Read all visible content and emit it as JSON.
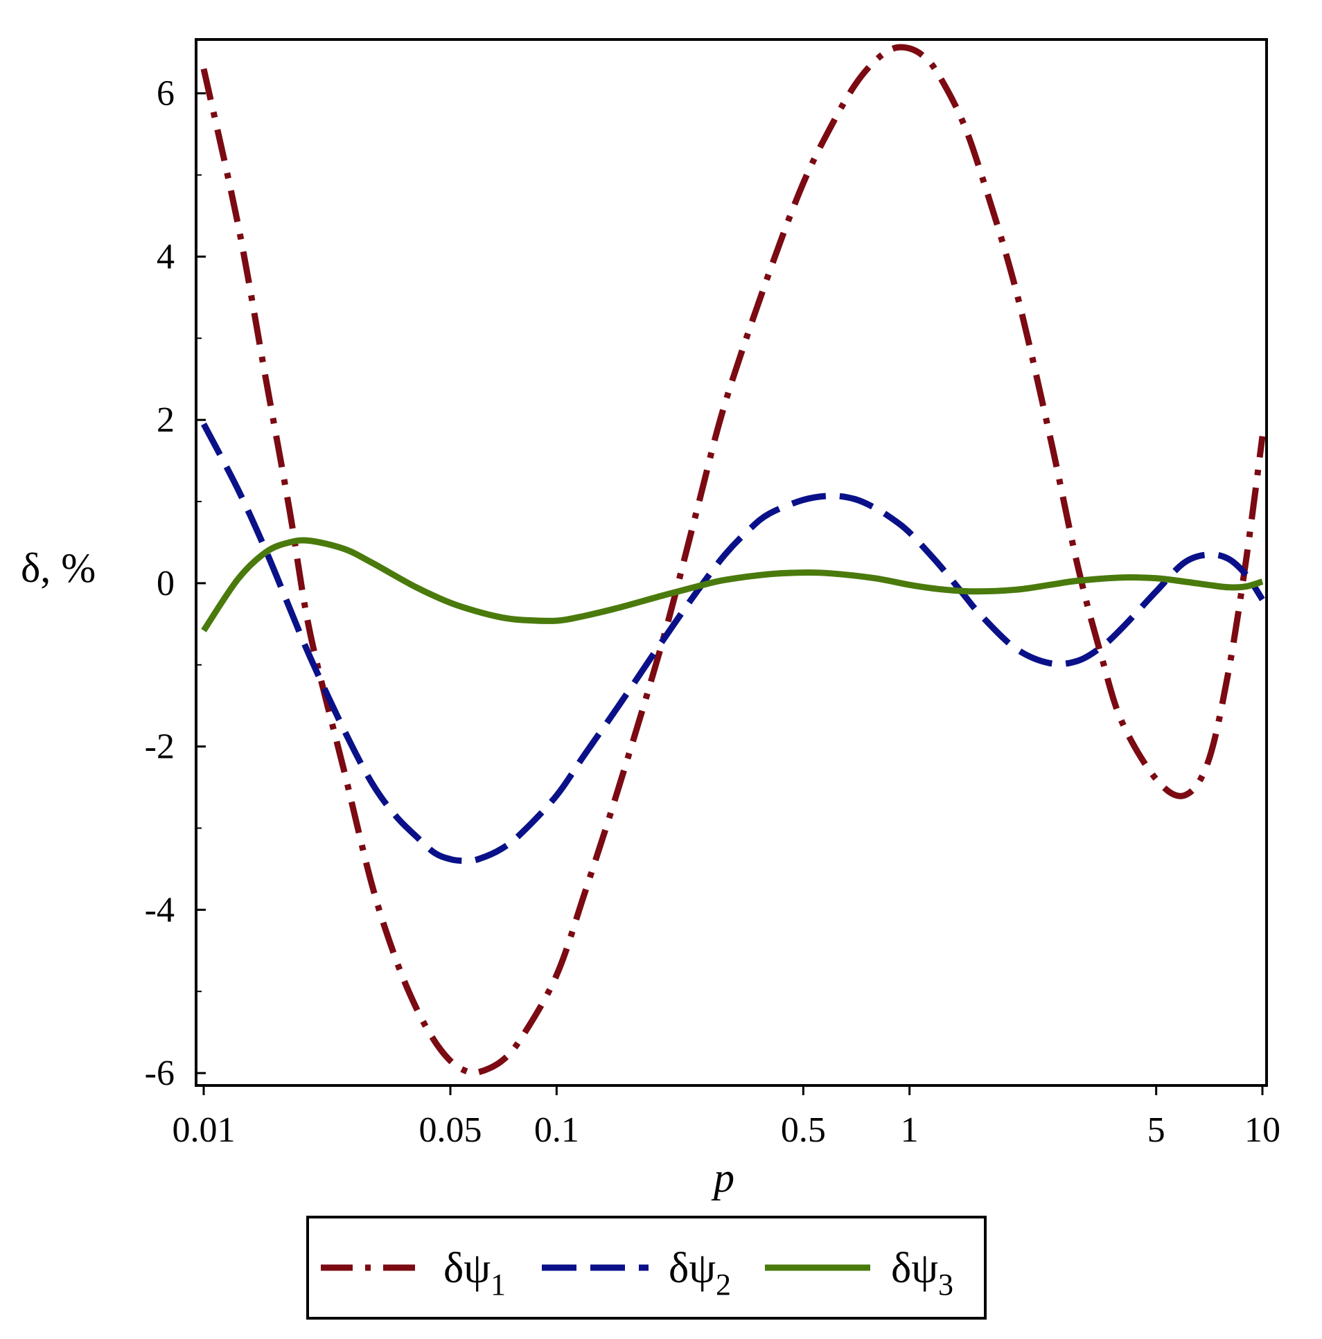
{
  "chart_data": {
    "type": "line",
    "x_scale": "log",
    "xlabel": "p",
    "ylabel": "δ, %",
    "xlim": [
      0.01,
      10
    ],
    "ylim": [
      -6.05,
      6.6
    ],
    "x_ticks": [
      {
        "value": 0.01,
        "label": "0.01"
      },
      {
        "value": 0.05,
        "label": "0.05"
      },
      {
        "value": 0.1,
        "label": "0.1"
      },
      {
        "value": 0.5,
        "label": "0.5"
      },
      {
        "value": 1,
        "label": "1"
      },
      {
        "value": 5,
        "label": "5"
      },
      {
        "value": 10,
        "label": "10"
      }
    ],
    "y_ticks": [
      {
        "value": 6,
        "label": "6"
      },
      {
        "value": 4,
        "label": "4"
      },
      {
        "value": 2,
        "label": "2"
      },
      {
        "value": 0,
        "label": "0"
      },
      {
        "value": -2,
        "label": "-2"
      },
      {
        "value": -4,
        "label": "-4"
      },
      {
        "value": -6,
        "label": "-6"
      }
    ],
    "grid": false,
    "legend_position": "bottom",
    "series": [
      {
        "name": "δψ",
        "subscript": "1",
        "color": "#7B0A12",
        "style": "dash-dot",
        "x": [
          0.01,
          0.0125,
          0.015,
          0.0175,
          0.02,
          0.025,
          0.03,
          0.035,
          0.04,
          0.045,
          0.05,
          0.055,
          0.06,
          0.07,
          0.08,
          0.1,
          0.12,
          0.15,
          0.2,
          0.25,
          0.3,
          0.4,
          0.5,
          0.6,
          0.7,
          0.8,
          0.9,
          1.0,
          1.1,
          1.2,
          1.4,
          1.6,
          2.0,
          2.5,
          3.0,
          3.5,
          4.0,
          5.0,
          6.0,
          7.0,
          8.0,
          9.0,
          10.0
        ],
        "y": [
          6.3,
          4.4,
          2.5,
          0.9,
          -0.6,
          -2.3,
          -3.7,
          -4.6,
          -5.2,
          -5.6,
          -5.85,
          -5.97,
          -5.99,
          -5.85,
          -5.55,
          -4.8,
          -3.8,
          -2.5,
          -0.7,
          0.9,
          2.2,
          3.8,
          4.9,
          5.6,
          6.1,
          6.4,
          6.55,
          6.55,
          6.45,
          6.25,
          5.7,
          5.0,
          3.6,
          1.8,
          0.2,
          -0.9,
          -1.7,
          -2.4,
          -2.6,
          -2.2,
          -1.1,
          0.3,
          1.8
        ]
      },
      {
        "name": "δψ",
        "subscript": "2",
        "color": "#0A1188",
        "style": "dash",
        "x": [
          0.01,
          0.0125,
          0.015,
          0.0175,
          0.02,
          0.025,
          0.03,
          0.035,
          0.04,
          0.045,
          0.05,
          0.055,
          0.06,
          0.07,
          0.08,
          0.1,
          0.12,
          0.15,
          0.2,
          0.25,
          0.3,
          0.35,
          0.4,
          0.5,
          0.6,
          0.7,
          0.8,
          0.9,
          1.0,
          1.2,
          1.4,
          1.6,
          2.0,
          2.5,
          3.0,
          3.5,
          4.0,
          5.0,
          6.0,
          7.0,
          8.0,
          9.0,
          10.0
        ],
        "y": [
          1.95,
          1.15,
          0.4,
          -0.3,
          -0.9,
          -1.8,
          -2.45,
          -2.85,
          -3.1,
          -3.3,
          -3.38,
          -3.4,
          -3.38,
          -3.25,
          -3.05,
          -2.6,
          -2.1,
          -1.5,
          -0.7,
          -0.1,
          0.35,
          0.65,
          0.85,
          1.02,
          1.07,
          1.03,
          0.92,
          0.78,
          0.62,
          0.25,
          -0.1,
          -0.4,
          -0.8,
          -0.98,
          -0.95,
          -0.78,
          -0.55,
          -0.1,
          0.25,
          0.35,
          0.3,
          0.1,
          -0.2
        ]
      },
      {
        "name": "δψ",
        "subscript": "3",
        "color": "#4A7A0C",
        "style": "solid",
        "x": [
          0.01,
          0.0125,
          0.015,
          0.0175,
          0.02,
          0.025,
          0.03,
          0.04,
          0.05,
          0.06,
          0.07,
          0.08,
          0.1,
          0.12,
          0.15,
          0.2,
          0.25,
          0.3,
          0.4,
          0.5,
          0.6,
          0.8,
          1.0,
          1.2,
          1.5,
          2.0,
          2.5,
          3.0,
          4.0,
          5.0,
          6.0,
          7.0,
          8.0,
          9.0,
          10.0
        ],
        "y": [
          -0.58,
          0.05,
          0.38,
          0.5,
          0.52,
          0.42,
          0.25,
          -0.05,
          -0.24,
          -0.35,
          -0.42,
          -0.45,
          -0.46,
          -0.4,
          -0.3,
          -0.15,
          -0.04,
          0.04,
          0.11,
          0.13,
          0.12,
          0.06,
          -0.02,
          -0.07,
          -0.1,
          -0.08,
          -0.02,
          0.03,
          0.07,
          0.06,
          0.02,
          -0.02,
          -0.05,
          -0.04,
          0.02
        ]
      }
    ]
  }
}
